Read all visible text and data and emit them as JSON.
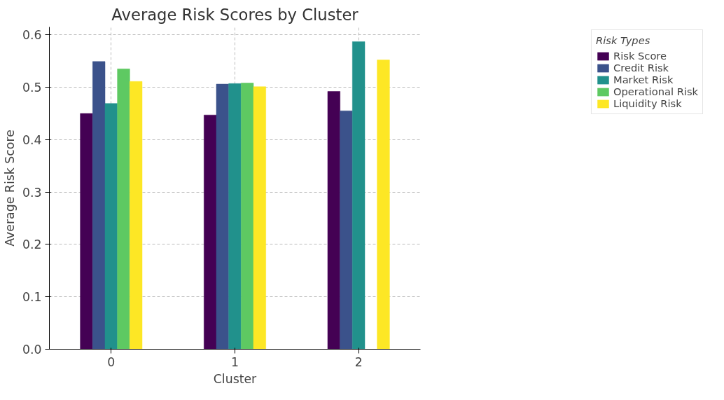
{
  "chart_data": {
    "type": "bar",
    "title": "Average Risk Scores by Cluster",
    "xlabel": "Cluster",
    "ylabel": "Average Risk Score",
    "legend_title": "Risk Types",
    "categories": [
      "0",
      "1",
      "2"
    ],
    "series": [
      {
        "name": "Risk Score",
        "color": "#440154",
        "values": [
          0.45,
          0.447,
          0.492
        ]
      },
      {
        "name": "Credit Risk",
        "color": "#3b528b",
        "values": [
          0.549,
          0.506,
          0.455
        ]
      },
      {
        "name": "Market Risk",
        "color": "#21918c",
        "values": [
          0.469,
          0.507,
          0.587
        ]
      },
      {
        "name": "Operational Risk",
        "color": "#5ec962",
        "values": [
          0.535,
          0.508,
          null
        ]
      },
      {
        "name": "Liquidity Risk",
        "color": "#fde725",
        "values": [
          0.511,
          0.501,
          0.552
        ]
      }
    ],
    "ylim": [
      0,
      0.615
    ],
    "yticks": [
      {
        "value": 0,
        "label": "0.0"
      },
      0.1,
      0.2,
      0.3,
      0.4,
      0.5,
      0.6
    ],
    "grid": true,
    "legend": "right"
  }
}
